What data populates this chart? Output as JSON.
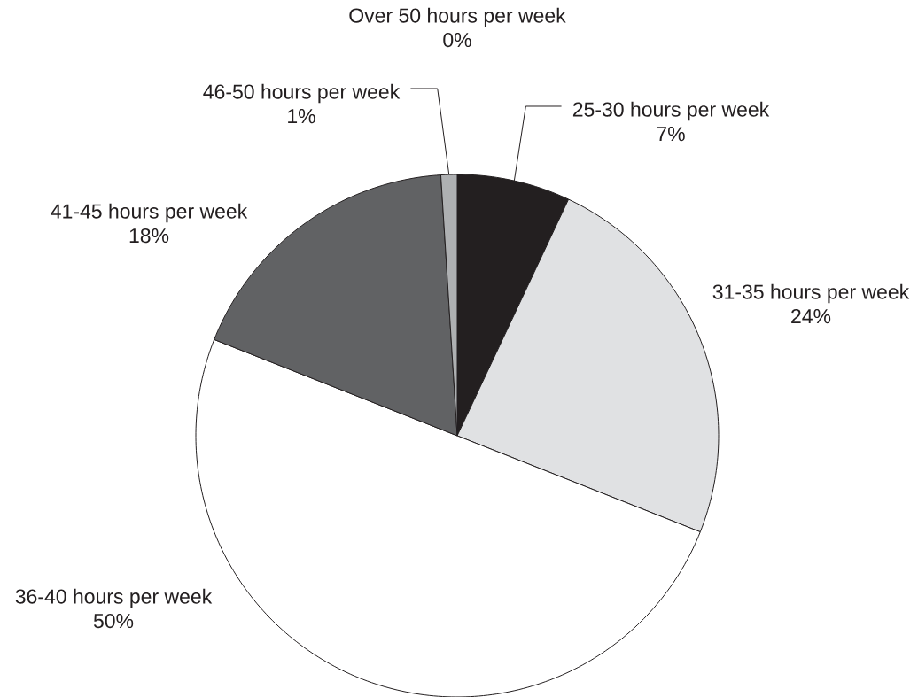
{
  "chart_data": {
    "type": "pie",
    "categories": [
      "25-30 hours per week",
      "31-35 hours per week",
      "36-40 hours per week",
      "41-45 hours per week",
      "46-50 hours per week",
      "Over 50 hours per week"
    ],
    "values": [
      7,
      24,
      50,
      18,
      1,
      0
    ],
    "colors": [
      "#231f20",
      "#e0e1e3",
      "#ffffff",
      "#616264",
      "#aeb0b2",
      "#d0d0d0"
    ],
    "value_labels": [
      "7%",
      "24%",
      "50%",
      "18%",
      "1%",
      "0%"
    ]
  }
}
